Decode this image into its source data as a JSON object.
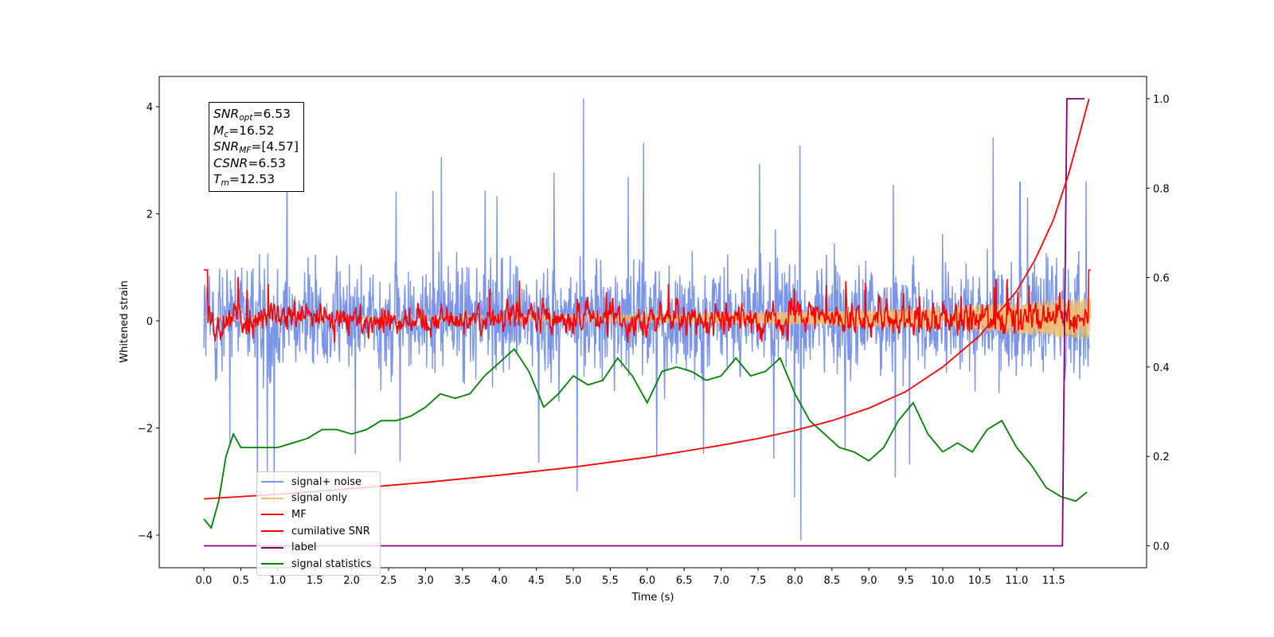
{
  "chart_data": {
    "type": "line",
    "xlabel": "Time (s)",
    "ylabel": "Whitened strain",
    "x_range": [
      -0.6,
      12.6
    ],
    "ylim_left": [
      -4.6,
      4.6
    ],
    "ylim_right": [
      -0.05,
      1.03
    ],
    "x_ticks": [
      "0.0",
      "0.5",
      "1.0",
      "1.5",
      "2.0",
      "2.5",
      "3.0",
      "3.5",
      "4.0",
      "4.5",
      "5.0",
      "5.5",
      "6.0",
      "6.5",
      "7.0",
      "7.5",
      "8.0",
      "8.5",
      "9.0",
      "9.5",
      "10.0",
      "10.5",
      "11.0",
      "11.5"
    ],
    "y_ticks_left": [
      "4",
      "2",
      "0",
      "−2",
      "−4"
    ],
    "y_ticks_right": [
      "1.0",
      "0.8",
      "0.6",
      "0.4",
      "0.2",
      "0.0"
    ],
    "annotation": {
      "snr_opt": "6.53",
      "mc": "16.52",
      "snr_mf": "[4.57]",
      "csnr": "6.53",
      "tm": "12.53"
    },
    "legend_position": "lower-left",
    "series": [
      {
        "name": "signal+ noise",
        "color": "#7b96e8",
        "axis": "left",
        "description_values": {
          "typical_range": [
            -1.8,
            2.0
          ],
          "peak_max": 4.15,
          "peak_min": -4.1,
          "peak_max_at": 5.14,
          "peak_min_at": 8.08
        }
      },
      {
        "name": "signal only",
        "color": "#f5bd6b",
        "axis": "left",
        "description_values": {
          "amplitude_start": 0.05,
          "amplitude_end": 0.4
        }
      },
      {
        "name": "MF",
        "color": "#ff0000",
        "axis": "left",
        "description_values": {
          "baseline": 0.0,
          "range": [
            -0.4,
            1.0
          ]
        }
      },
      {
        "name": "cumilative SNR",
        "color": "#ff0000",
        "axis": "right",
        "x": [
          0.0,
          1.0,
          2.0,
          3.0,
          4.0,
          5.0,
          6.0,
          7.0,
          7.5,
          8.0,
          8.5,
          9.0,
          9.5,
          10.0,
          10.5,
          11.0,
          11.25,
          11.5,
          11.7,
          11.85,
          11.93,
          11.98
        ],
        "y": [
          0.105,
          0.115,
          0.128,
          0.142,
          0.158,
          0.176,
          0.198,
          0.225,
          0.24,
          0.258,
          0.28,
          0.308,
          0.345,
          0.4,
          0.47,
          0.57,
          0.64,
          0.73,
          0.83,
          0.92,
          0.97,
          1.0
        ]
      },
      {
        "name": "label",
        "color": "#800080",
        "axis": "right",
        "x": [
          0.0,
          11.62,
          11.68,
          11.92
        ],
        "y": [
          0.0,
          0.0,
          1.0,
          1.0
        ]
      },
      {
        "name": "signal statistics",
        "color": "#008000",
        "axis": "right",
        "x": [
          0.0,
          0.1,
          0.2,
          0.3,
          0.4,
          0.5,
          0.6,
          0.8,
          1.0,
          1.2,
          1.4,
          1.6,
          1.8,
          2.0,
          2.2,
          2.4,
          2.6,
          2.8,
          3.0,
          3.2,
          3.4,
          3.6,
          3.8,
          4.0,
          4.2,
          4.4,
          4.6,
          4.8,
          5.0,
          5.2,
          5.4,
          5.6,
          5.8,
          6.0,
          6.2,
          6.4,
          6.6,
          6.8,
          7.0,
          7.2,
          7.4,
          7.6,
          7.8,
          8.0,
          8.2,
          8.4,
          8.6,
          8.8,
          9.0,
          9.2,
          9.4,
          9.6,
          9.8,
          10.0,
          10.2,
          10.4,
          10.6,
          10.8,
          11.0,
          11.2,
          11.4,
          11.6,
          11.8,
          11.95
        ],
        "y": [
          0.06,
          0.04,
          0.1,
          0.2,
          0.25,
          0.22,
          0.22,
          0.22,
          0.22,
          0.23,
          0.24,
          0.26,
          0.26,
          0.25,
          0.26,
          0.28,
          0.28,
          0.29,
          0.31,
          0.34,
          0.33,
          0.34,
          0.38,
          0.41,
          0.44,
          0.39,
          0.31,
          0.34,
          0.38,
          0.36,
          0.37,
          0.42,
          0.38,
          0.32,
          0.39,
          0.4,
          0.39,
          0.37,
          0.38,
          0.42,
          0.38,
          0.39,
          0.42,
          0.34,
          0.28,
          0.25,
          0.22,
          0.21,
          0.19,
          0.22,
          0.28,
          0.32,
          0.25,
          0.21,
          0.23,
          0.21,
          0.26,
          0.28,
          0.22,
          0.18,
          0.13,
          0.11,
          0.1,
          0.12
        ]
      }
    ]
  }
}
